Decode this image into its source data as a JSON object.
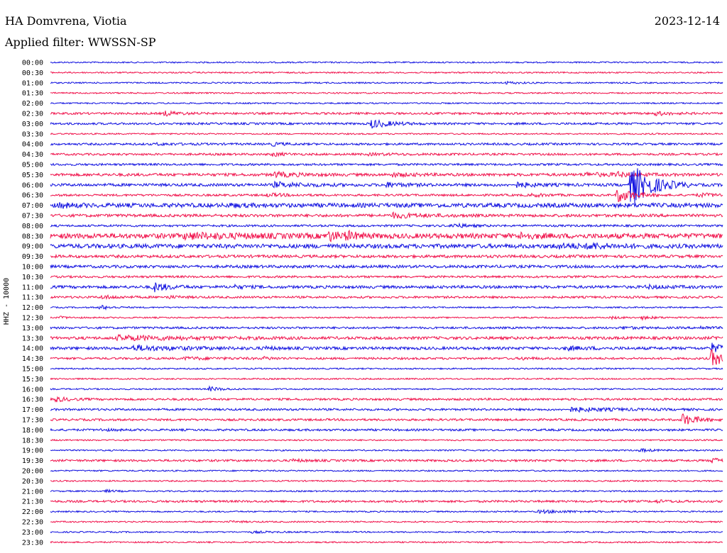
{
  "header": {
    "station": "HA Domvrena, Viotia",
    "date": "2023-12-14",
    "filter_label": "Applied filter: WWSSN-SP"
  },
  "colors": {
    "trace_a": "#1010e0",
    "trace_b": "#f0104a",
    "text": "#000000",
    "background": "#ffffff"
  },
  "chart_data": {
    "type": "line",
    "title": "HA Domvrena, Viotia",
    "subtitle": "Applied filter: WWSSN-SP",
    "date": "2023-12-14",
    "ylabel": "HHZ - 10000",
    "xlabel": "",
    "row_interval_minutes": 30,
    "grid": false,
    "legend": "none",
    "ticks": [
      "00:00",
      "00:30",
      "01:00",
      "01:30",
      "02:00",
      "02:30",
      "03:00",
      "03:30",
      "04:00",
      "04:30",
      "05:00",
      "05:30",
      "06:00",
      "06:30",
      "07:00",
      "07:30",
      "08:00",
      "08:30",
      "09:00",
      "09:30",
      "10:00",
      "10:30",
      "11:00",
      "11:30",
      "12:00",
      "12:30",
      "13:00",
      "13:30",
      "14:00",
      "14:30",
      "15:00",
      "15:30",
      "16:00",
      "16:30",
      "17:00",
      "17:30",
      "18:00",
      "18:30",
      "19:00",
      "19:30",
      "20:00",
      "20:30",
      "21:00",
      "21:30",
      "22:00",
      "22:30",
      "23:00",
      "23:30"
    ],
    "rows": [
      {
        "time": "00:00",
        "color": "blue",
        "noise": 0.2,
        "events": []
      },
      {
        "time": "00:30",
        "color": "red",
        "noise": 0.2,
        "events": []
      },
      {
        "time": "01:00",
        "color": "blue",
        "noise": 0.2,
        "events": [
          {
            "minute": 20.3,
            "amp": 0.3,
            "dur": 0.6
          }
        ]
      },
      {
        "time": "01:30",
        "color": "red",
        "noise": 0.2,
        "events": []
      },
      {
        "time": "02:00",
        "color": "blue",
        "noise": 0.2,
        "events": []
      },
      {
        "time": "02:30",
        "color": "red",
        "noise": 0.3,
        "events": [
          {
            "minute": 5.1,
            "amp": 0.6,
            "dur": 0.6
          },
          {
            "minute": 27.0,
            "amp": 0.5,
            "dur": 0.6
          }
        ]
      },
      {
        "time": "03:00",
        "color": "blue",
        "noise": 0.3,
        "events": [
          {
            "minute": 14.3,
            "amp": 1.2,
            "dur": 0.8
          }
        ]
      },
      {
        "time": "03:30",
        "color": "red",
        "noise": 0.2,
        "events": []
      },
      {
        "time": "04:00",
        "color": "blue",
        "noise": 0.3,
        "events": [
          {
            "minute": 9.9,
            "amp": 0.4,
            "dur": 0.5
          },
          {
            "minute": 4.7,
            "amp": 0.2,
            "dur": 1.0
          }
        ]
      },
      {
        "time": "04:30",
        "color": "red",
        "noise": 0.3,
        "events": [
          {
            "minute": 9.9,
            "amp": 0.5,
            "dur": 0.5
          },
          {
            "minute": 14.2,
            "amp": 0.2,
            "dur": 1.5
          }
        ]
      },
      {
        "time": "05:00",
        "color": "blue",
        "noise": 0.3,
        "events": []
      },
      {
        "time": "05:30",
        "color": "red",
        "noise": 0.4,
        "events": [
          {
            "minute": 10.0,
            "amp": 0.6,
            "dur": 1.0
          },
          {
            "minute": 15.2,
            "amp": 0.4,
            "dur": 1.0
          },
          {
            "minute": 23.8,
            "amp": 0.4,
            "dur": 1.5
          },
          {
            "minute": 25.2,
            "amp": 0.5,
            "dur": 0.7
          }
        ]
      },
      {
        "time": "06:00",
        "color": "blue",
        "noise": 0.4,
        "events": [
          {
            "minute": 10.0,
            "amp": 0.6,
            "dur": 1.4
          },
          {
            "minute": 14.9,
            "amp": 0.6,
            "dur": 0.8
          },
          {
            "minute": 20.8,
            "amp": 0.6,
            "dur": 0.8
          },
          {
            "minute": 25.9,
            "amp": 6.0,
            "dur": 0.9
          }
        ]
      },
      {
        "time": "06:30",
        "color": "red",
        "noise": 0.3,
        "events": [
          {
            "minute": 9.7,
            "amp": 0.4,
            "dur": 0.8
          },
          {
            "minute": 21.5,
            "amp": 0.4,
            "dur": 0.6
          },
          {
            "minute": 25.3,
            "amp": 2.0,
            "dur": 0.7
          },
          {
            "minute": 28.9,
            "amp": 0.4,
            "dur": 1.5
          }
        ]
      },
      {
        "time": "07:00",
        "color": "blue",
        "noise": 0.6,
        "events": [
          {
            "minute": 0.4,
            "amp": 0.5,
            "dur": 0.6
          },
          {
            "minute": 8.0,
            "amp": 0.3,
            "dur": 0.6
          }
        ]
      },
      {
        "time": "07:30",
        "color": "red",
        "noise": 0.4,
        "events": [
          {
            "minute": 15.2,
            "amp": 0.6,
            "dur": 1.4
          }
        ]
      },
      {
        "time": "08:00",
        "color": "blue",
        "noise": 0.3,
        "events": [
          {
            "minute": 17.9,
            "amp": 0.6,
            "dur": 0.6
          }
        ]
      },
      {
        "time": "08:30",
        "color": "red",
        "noise": 0.7,
        "events": [
          {
            "minute": 6.0,
            "amp": 0.6,
            "dur": 2.5
          },
          {
            "minute": 12.4,
            "amp": 1.2,
            "dur": 0.5
          },
          {
            "minute": 13.2,
            "amp": 0.8,
            "dur": 0.6
          },
          {
            "minute": 21.0,
            "amp": 0.6,
            "dur": 0.6
          }
        ]
      },
      {
        "time": "09:00",
        "color": "blue",
        "noise": 0.6,
        "events": [
          {
            "minute": 22.5,
            "amp": 0.5,
            "dur": 1.5
          },
          {
            "minute": 24.0,
            "amp": 0.6,
            "dur": 0.7
          }
        ]
      },
      {
        "time": "09:30",
        "color": "red",
        "noise": 0.4,
        "events": []
      },
      {
        "time": "10:00",
        "color": "blue",
        "noise": 0.4,
        "events": []
      },
      {
        "time": "10:30",
        "color": "red",
        "noise": 0.3,
        "events": []
      },
      {
        "time": "11:00",
        "color": "blue",
        "noise": 0.4,
        "events": [
          {
            "minute": 4.6,
            "amp": 1.3,
            "dur": 0.6
          },
          {
            "minute": 8.2,
            "amp": 0.4,
            "dur": 0.5
          },
          {
            "minute": 26.6,
            "amp": 0.4,
            "dur": 1.0
          }
        ]
      },
      {
        "time": "11:30",
        "color": "red",
        "noise": 0.3,
        "events": [
          {
            "minute": 2.3,
            "amp": 0.4,
            "dur": 0.8
          },
          {
            "minute": 5.2,
            "amp": 0.3,
            "dur": 0.6
          }
        ]
      },
      {
        "time": "12:00",
        "color": "blue",
        "noise": 0.2,
        "events": [
          {
            "minute": 2.2,
            "amp": 0.6,
            "dur": 0.5
          }
        ]
      },
      {
        "time": "12:30",
        "color": "red",
        "noise": 0.2,
        "events": [
          {
            "minute": 0.4,
            "amp": 0.3,
            "dur": 0.4
          },
          {
            "minute": 25.0,
            "amp": 0.3,
            "dur": 0.5
          },
          {
            "minute": 26.4,
            "amp": 0.4,
            "dur": 0.6
          }
        ]
      },
      {
        "time": "13:00",
        "color": "blue",
        "noise": 0.3,
        "events": [
          {
            "minute": 25.5,
            "amp": 0.3,
            "dur": 0.6
          },
          {
            "minute": 29.0,
            "amp": 0.4,
            "dur": 0.5
          }
        ]
      },
      {
        "time": "13:30",
        "color": "red",
        "noise": 0.4,
        "events": [
          {
            "minute": 3.0,
            "amp": 0.6,
            "dur": 3.0
          },
          {
            "minute": 29.6,
            "amp": 0.3,
            "dur": 0.5
          }
        ]
      },
      {
        "time": "14:00",
        "color": "blue",
        "noise": 0.4,
        "events": [
          {
            "minute": 3.7,
            "amp": 0.6,
            "dur": 2.2
          },
          {
            "minute": 9.6,
            "amp": 0.3,
            "dur": 0.4
          },
          {
            "minute": 23.0,
            "amp": 0.4,
            "dur": 1.0
          },
          {
            "minute": 29.5,
            "amp": 1.2,
            "dur": 0.5
          }
        ]
      },
      {
        "time": "14:30",
        "color": "red",
        "noise": 0.3,
        "events": [
          {
            "minute": 6.0,
            "amp": 0.3,
            "dur": 1.5
          },
          {
            "minute": 9.5,
            "amp": 0.3,
            "dur": 0.5
          },
          {
            "minute": 21.0,
            "amp": 0.3,
            "dur": 0.5
          },
          {
            "minute": 29.5,
            "amp": 2.5,
            "dur": 0.5
          }
        ]
      },
      {
        "time": "15:00",
        "color": "blue",
        "noise": 0.2,
        "events": []
      },
      {
        "time": "15:30",
        "color": "red",
        "noise": 0.2,
        "events": []
      },
      {
        "time": "16:00",
        "color": "blue",
        "noise": 0.2,
        "events": [
          {
            "minute": 7.1,
            "amp": 0.6,
            "dur": 0.5
          },
          {
            "minute": 29.9,
            "amp": 0.3,
            "dur": 0.4
          }
        ]
      },
      {
        "time": "16:30",
        "color": "red",
        "noise": 0.3,
        "events": [
          {
            "minute": 0.2,
            "amp": 0.6,
            "dur": 0.6
          }
        ]
      },
      {
        "time": "17:00",
        "color": "blue",
        "noise": 0.3,
        "events": [
          {
            "minute": 23.2,
            "amp": 0.5,
            "dur": 2.0
          }
        ]
      },
      {
        "time": "17:30",
        "color": "red",
        "noise": 0.3,
        "events": [
          {
            "minute": 28.2,
            "amp": 1.7,
            "dur": 0.6
          }
        ]
      },
      {
        "time": "18:00",
        "color": "blue",
        "noise": 0.3,
        "events": [
          {
            "minute": 2.2,
            "amp": 0.2,
            "dur": 0.6
          }
        ]
      },
      {
        "time": "18:30",
        "color": "red",
        "noise": 0.2,
        "events": []
      },
      {
        "time": "19:00",
        "color": "blue",
        "noise": 0.2,
        "events": [
          {
            "minute": 26.3,
            "amp": 0.4,
            "dur": 0.6
          }
        ]
      },
      {
        "time": "19:30",
        "color": "red",
        "noise": 0.3,
        "events": [
          {
            "minute": 10.8,
            "amp": 0.3,
            "dur": 0.6
          },
          {
            "minute": 29.5,
            "amp": 0.6,
            "dur": 0.7
          }
        ]
      },
      {
        "time": "20:00",
        "color": "blue",
        "noise": 0.2,
        "events": []
      },
      {
        "time": "20:30",
        "color": "red",
        "noise": 0.2,
        "events": []
      },
      {
        "time": "21:00",
        "color": "blue",
        "noise": 0.2,
        "events": [
          {
            "minute": 2.5,
            "amp": 0.3,
            "dur": 0.4
          }
        ]
      },
      {
        "time": "21:30",
        "color": "red",
        "noise": 0.3,
        "events": [
          {
            "minute": 27.0,
            "amp": 0.3,
            "dur": 0.6
          }
        ]
      },
      {
        "time": "22:00",
        "color": "blue",
        "noise": 0.2,
        "events": [
          {
            "minute": 21.8,
            "amp": 0.4,
            "dur": 1.5
          }
        ]
      },
      {
        "time": "22:30",
        "color": "red",
        "noise": 0.2,
        "events": [
          {
            "minute": 8.0,
            "amp": 0.2,
            "dur": 0.6
          }
        ]
      },
      {
        "time": "23:00",
        "color": "blue",
        "noise": 0.2,
        "events": [
          {
            "minute": 9.0,
            "amp": 0.2,
            "dur": 1.0
          }
        ]
      },
      {
        "time": "23:30",
        "color": "red",
        "noise": 0.2,
        "events": []
      }
    ]
  }
}
